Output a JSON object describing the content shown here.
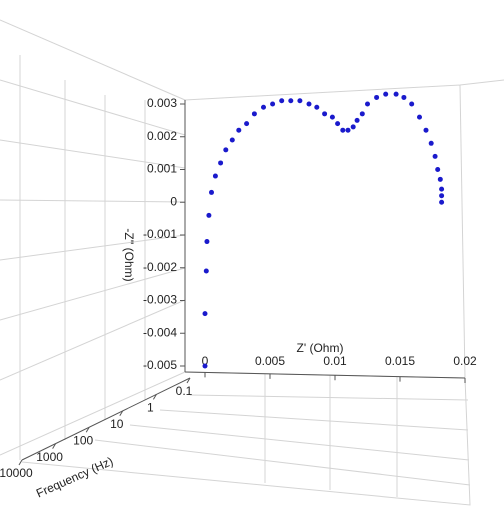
{
  "chart_data": {
    "type": "scatter3d",
    "x_label": "Z' (Ohm)",
    "y_label": "-Z'' (Ohm)",
    "z_label": "Frequency (Hz)",
    "color": "#1a1acc",
    "xlim": [
      0,
      0.02
    ],
    "xticks": [
      0,
      0.005,
      0.01,
      0.015,
      0.02
    ],
    "ylim": [
      -0.005,
      0.003
    ],
    "yticks": [
      0.003,
      0.002,
      0.001,
      0,
      -0.001,
      -0.002,
      -0.003,
      -0.004,
      -0.005
    ],
    "zlim": [
      0.1,
      10000
    ],
    "zticks": [
      0.1,
      1,
      10,
      100,
      1000,
      10000
    ],
    "zlog": true,
    "x": [
      0,
      0,
      0.0001,
      0.00015,
      0.0003,
      0.0005,
      0.0008,
      0.0012,
      0.0016,
      0.0021,
      0.0026,
      0.0032,
      0.0038,
      0.0045,
      0.0052,
      0.0059,
      0.0066,
      0.0073,
      0.008,
      0.0086,
      0.0092,
      0.0098,
      0.0102,
      0.0106,
      0.011,
      0.0114,
      0.0117,
      0.0121,
      0.0125,
      0.0132,
      0.0139,
      0.0147,
      0.0153,
      0.0159,
      0.0165,
      0.017,
      0.0174,
      0.0177,
      0.0179,
      0.0181,
      0.0182,
      0.0182,
      0.0182
    ],
    "y": [
      -0.005,
      -0.0034,
      -0.0021,
      -0.0012,
      -0.0004,
      0.0003,
      0.0008,
      0.0012,
      0.0016,
      0.0019,
      0.0022,
      0.0024,
      0.0027,
      0.0029,
      0.003,
      0.0031,
      0.0031,
      0.0031,
      0.003,
      0.0029,
      0.0027,
      0.0026,
      0.0024,
      0.0022,
      0.0022,
      0.0023,
      0.0025,
      0.0027,
      0.003,
      0.0032,
      0.0033,
      0.0033,
      0.0032,
      0.003,
      0.0026,
      0.0022,
      0.0018,
      0.0014,
      0.001,
      0.0007,
      0.0004,
      0.0002,
      0
    ]
  }
}
